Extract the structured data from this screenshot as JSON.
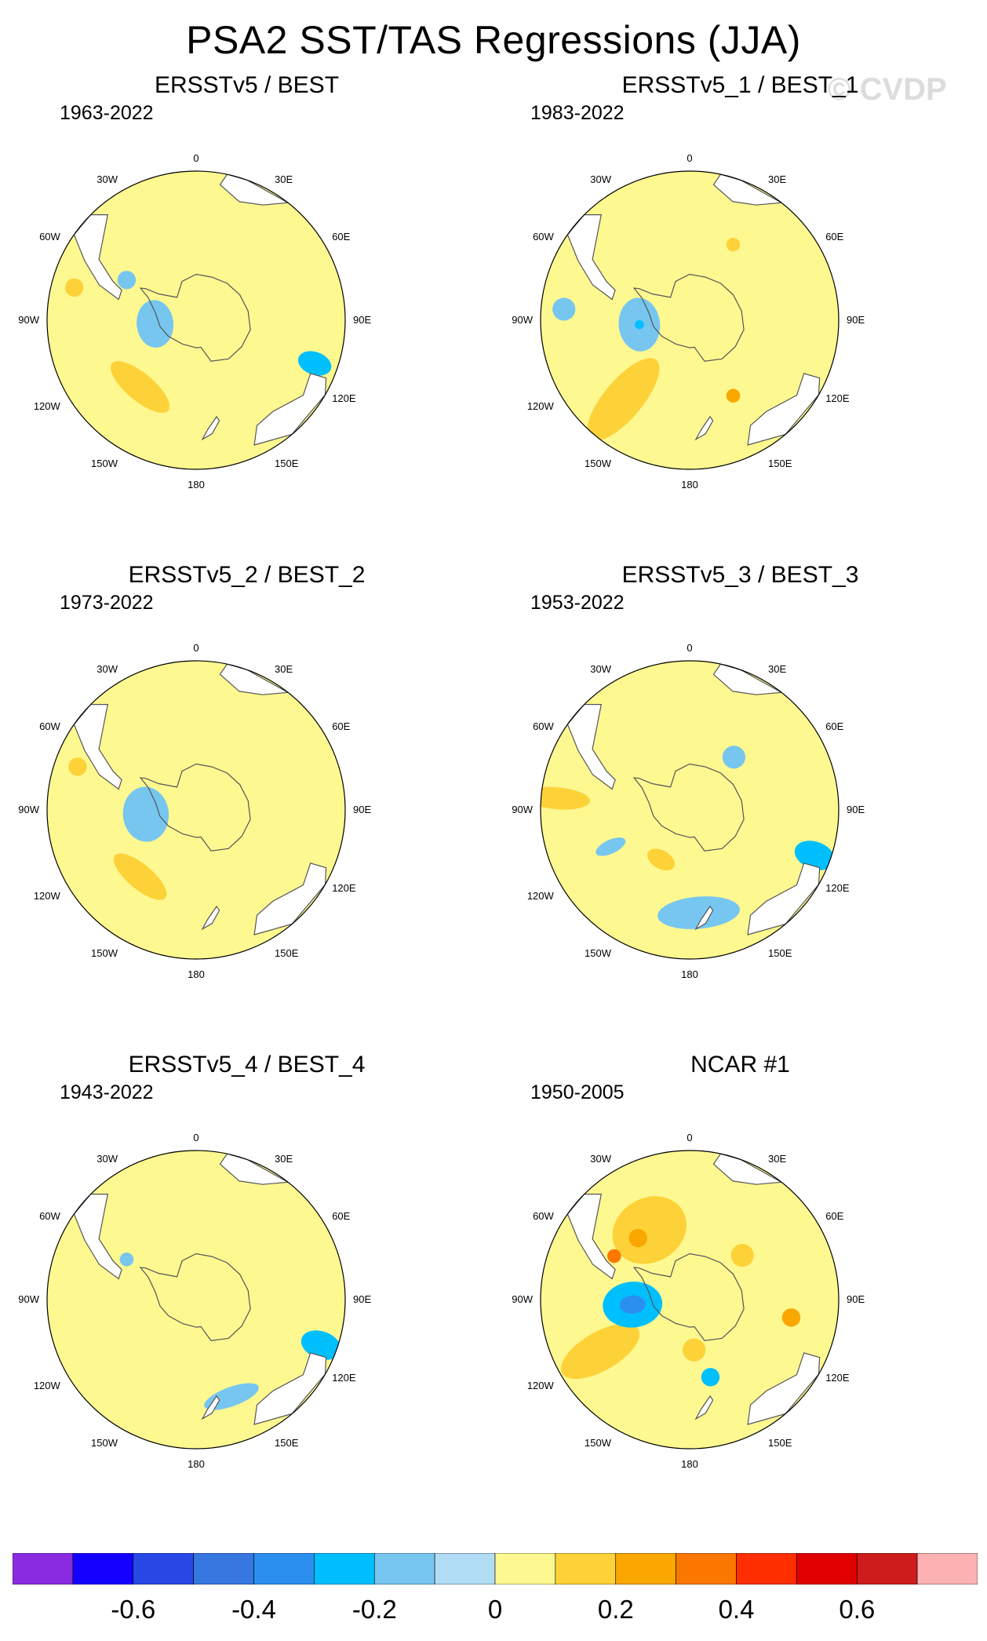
{
  "title": "PSA2 SST/TAS Regressions (JJA)",
  "watermark": "© CVDP",
  "chart_data": [
    {
      "type": "heatmap",
      "projection": "south-polar-stereographic",
      "title": "ERSSTv5 / BEST",
      "period": "1963-2022",
      "longitude_labels": [
        "0",
        "30E",
        "60E",
        "90E",
        "120E",
        "150E",
        "180",
        "150W",
        "120W",
        "90W",
        "60W",
        "30W"
      ],
      "features": [
        {
          "lon": -140,
          "colat": 38,
          "value": 0.15,
          "r": 10,
          "sx": 1.6,
          "sy": 0.6
        },
        {
          "lon": -150,
          "colat": 30,
          "value": 0.05,
          "r": 20,
          "sx": 1.5,
          "sy": 1.0
        },
        {
          "lon": -95,
          "colat": 18,
          "value": -0.15,
          "r": 8,
          "sx": 1.3,
          "sy": 1.0
        },
        {
          "lon": -90,
          "colat": 48,
          "value": 0.05,
          "r": 22,
          "sx": 1.2,
          "sy": 1.0
        },
        {
          "lon": -30,
          "colat": 40,
          "value": 0.05,
          "r": 22,
          "sx": 1.0,
          "sy": 0.8
        },
        {
          "lon": -60,
          "colat": 35,
          "value": -0.15,
          "r": 4,
          "sx": 1.0,
          "sy": 1.0
        },
        {
          "lon": -75,
          "colat": 55,
          "value": 0.15,
          "r": 4,
          "sx": 1.0,
          "sy": 1.0
        },
        {
          "lon": 45,
          "colat": 38,
          "value": 0.05,
          "r": 22,
          "sx": 1.0,
          "sy": 1.3
        },
        {
          "lon": 70,
          "colat": 15,
          "value": 0.05,
          "r": 12,
          "sx": 1.3,
          "sy": 0.8
        },
        {
          "lon": 110,
          "colat": 55,
          "value": -0.25,
          "r": 5,
          "sx": 1.0,
          "sy": 1.5
        }
      ]
    },
    {
      "type": "heatmap",
      "projection": "south-polar-stereographic",
      "title": "ERSSTv5_1 / BEST_1",
      "period": "1983-2022",
      "longitude_labels": [
        "0",
        "30E",
        "60E",
        "90E",
        "120E",
        "150E",
        "180",
        "150W",
        "120W",
        "90W",
        "60W",
        "30W"
      ],
      "features": [
        {
          "lon": -140,
          "colat": 45,
          "value": 0.15,
          "r": 14,
          "sx": 0.6,
          "sy": 1.6
        },
        {
          "lon": -160,
          "colat": 35,
          "value": 0.05,
          "r": 24,
          "sx": 1.6,
          "sy": 0.8
        },
        {
          "lon": -95,
          "colat": 22,
          "value": -0.15,
          "r": 9,
          "sx": 1.3,
          "sy": 1.0
        },
        {
          "lon": -95,
          "colat": 22,
          "value": -0.25,
          "r": 2,
          "sx": 1.0,
          "sy": 1.0
        },
        {
          "lon": -120,
          "colat": 30,
          "value": 0.05,
          "r": 12,
          "sx": 1.8,
          "sy": 0.7
        },
        {
          "lon": -85,
          "colat": 55,
          "value": -0.15,
          "r": 5,
          "sx": 1.0,
          "sy": 1.0
        },
        {
          "lon": 10,
          "colat": 40,
          "value": 0.05,
          "r": 14,
          "sx": 1.0,
          "sy": 1.0
        },
        {
          "lon": 30,
          "colat": 38,
          "value": 0.15,
          "r": 3,
          "sx": 1.0,
          "sy": 1.0
        },
        {
          "lon": 90,
          "colat": 30,
          "value": 0.05,
          "r": 20,
          "sx": 1.0,
          "sy": 1.2
        },
        {
          "lon": 150,
          "colat": 38,
          "value": 0.25,
          "r": 3,
          "sx": 1.0,
          "sy": 1.0
        }
      ]
    },
    {
      "type": "heatmap",
      "projection": "south-polar-stereographic",
      "title": "ERSSTv5_2 / BEST_2",
      "period": "1973-2022",
      "longitude_labels": [
        "0",
        "30E",
        "60E",
        "90E",
        "120E",
        "150E",
        "180",
        "150W",
        "120W",
        "90W",
        "60W",
        "30W"
      ],
      "features": [
        {
          "lon": -140,
          "colat": 38,
          "value": 0.15,
          "r": 9,
          "sx": 1.6,
          "sy": 0.6
        },
        {
          "lon": -150,
          "colat": 30,
          "value": 0.05,
          "r": 20,
          "sx": 1.5,
          "sy": 1.0
        },
        {
          "lon": -95,
          "colat": 22,
          "value": -0.15,
          "r": 10,
          "sx": 1.2,
          "sy": 1.0
        },
        {
          "lon": -40,
          "colat": 40,
          "value": 0.05,
          "r": 22,
          "sx": 1.0,
          "sy": 0.9
        },
        {
          "lon": -70,
          "colat": 55,
          "value": 0.15,
          "r": 4,
          "sx": 1.0,
          "sy": 1.0
        },
        {
          "lon": 40,
          "colat": 30,
          "value": 0.05,
          "r": 24,
          "sx": 1.0,
          "sy": 1.3
        },
        {
          "lon": 80,
          "colat": 45,
          "value": 0.05,
          "r": 15,
          "sx": 1.0,
          "sy": 1.0
        }
      ]
    },
    {
      "type": "heatmap",
      "projection": "south-polar-stereographic",
      "title": "ERSSTv5_3 / BEST_3",
      "period": "1953-2022",
      "longitude_labels": [
        "0",
        "30E",
        "60E",
        "90E",
        "120E",
        "150E",
        "180",
        "150W",
        "120W",
        "90W",
        "60W",
        "30W"
      ],
      "features": [
        {
          "lon": -160,
          "colat": 30,
          "value": 0.05,
          "r": 18,
          "sx": 1.4,
          "sy": 0.8
        },
        {
          "lon": -150,
          "colat": 25,
          "value": 0.15,
          "r": 5,
          "sx": 1.3,
          "sy": 0.8
        },
        {
          "lon": 175,
          "colat": 45,
          "value": -0.15,
          "r": 10,
          "sx": 1.8,
          "sy": 0.7
        },
        {
          "lon": -115,
          "colat": 38,
          "value": -0.15,
          "r": 5,
          "sx": 0.6,
          "sy": 1.4
        },
        {
          "lon": -85,
          "colat": 58,
          "value": 0.15,
          "r": 8,
          "sx": 0.6,
          "sy": 1.8
        },
        {
          "lon": -85,
          "colat": 50,
          "value": 0.05,
          "r": 12,
          "sx": 0.8,
          "sy": 1.6
        },
        {
          "lon": 40,
          "colat": 30,
          "value": -0.15,
          "r": 5,
          "sx": 1.0,
          "sy": 1.0
        },
        {
          "lon": 70,
          "colat": 40,
          "value": 0.05,
          "r": 22,
          "sx": 1.2,
          "sy": 1.0
        },
        {
          "lon": 110,
          "colat": 58,
          "value": -0.25,
          "r": 6,
          "sx": 1.0,
          "sy": 1.5
        }
      ]
    },
    {
      "type": "heatmap",
      "projection": "south-polar-stereographic",
      "title": "ERSSTv5_4 / BEST_4",
      "period": "1943-2022",
      "longitude_labels": [
        "0",
        "30E",
        "60E",
        "90E",
        "120E",
        "150E",
        "180",
        "150W",
        "120W",
        "90W",
        "60W",
        "30W"
      ],
      "features": [
        {
          "lon": -150,
          "colat": 28,
          "value": 0.05,
          "r": 18,
          "sx": 1.6,
          "sy": 0.8
        },
        {
          "lon": -90,
          "colat": 50,
          "value": 0.05,
          "r": 20,
          "sx": 0.9,
          "sy": 1.3
        },
        {
          "lon": -10,
          "colat": 30,
          "value": 0.05,
          "r": 12,
          "sx": 0.8,
          "sy": 1.3
        },
        {
          "lon": -60,
          "colat": 35,
          "value": -0.15,
          "r": 3,
          "sx": 1.0,
          "sy": 1.0
        },
        {
          "lon": 160,
          "colat": 45,
          "value": -0.15,
          "r": 7,
          "sx": 1.8,
          "sy": 0.6
        },
        {
          "lon": 110,
          "colat": 58,
          "value": -0.25,
          "r": 6,
          "sx": 1.0,
          "sy": 1.5
        }
      ]
    },
    {
      "type": "heatmap",
      "projection": "south-polar-stereographic",
      "title": "NCAR #1",
      "period": "1950-2005",
      "longitude_labels": [
        "0",
        "30E",
        "60E",
        "90E",
        "120E",
        "150E",
        "180",
        "150W",
        "120W",
        "90W",
        "60W",
        "30W"
      ],
      "features": [
        {
          "lon": -110,
          "colat": 45,
          "value": 0.05,
          "r": 22,
          "sx": 0.8,
          "sy": 1.5
        },
        {
          "lon": -120,
          "colat": 45,
          "value": 0.15,
          "r": 12,
          "sx": 0.7,
          "sy": 1.6
        },
        {
          "lon": -95,
          "colat": 25,
          "value": -0.25,
          "r": 10,
          "sx": 1.0,
          "sy": 1.3
        },
        {
          "lon": -95,
          "colat": 25,
          "value": -0.35,
          "r": 4,
          "sx": 1.0,
          "sy": 1.4
        },
        {
          "lon": -30,
          "colat": 35,
          "value": 0.15,
          "r": 14,
          "sx": 1.2,
          "sy": 1.0
        },
        {
          "lon": -40,
          "colat": 35,
          "value": 0.25,
          "r": 4,
          "sx": 1.0,
          "sy": 1.0
        },
        {
          "lon": -60,
          "colat": 38,
          "value": 0.35,
          "r": 3,
          "sx": 1.0,
          "sy": 1.0
        },
        {
          "lon": 50,
          "colat": 30,
          "value": 0.15,
          "r": 5,
          "sx": 1.0,
          "sy": 1.0
        },
        {
          "lon": 100,
          "colat": 45,
          "value": 0.25,
          "r": 4,
          "sx": 1.0,
          "sy": 1.0
        },
        {
          "lon": 165,
          "colat": 35,
          "value": -0.25,
          "r": 4,
          "sx": 1.0,
          "sy": 1.0
        },
        {
          "lon": 175,
          "colat": 22,
          "value": 0.15,
          "r": 5,
          "sx": 1.0,
          "sy": 1.0
        }
      ]
    }
  ],
  "colorbar": {
    "levels": [
      -0.7,
      -0.6,
      -0.5,
      -0.4,
      -0.3,
      -0.2,
      -0.1,
      0,
      0.1,
      0.2,
      0.3,
      0.4,
      0.5,
      0.6,
      0.7
    ],
    "colors": [
      "#8A2BE2",
      "#1400FF",
      "#2848E6",
      "#3677E0",
      "#2B8FEF",
      "#00BFFF",
      "#77C6F0",
      "#B1DDF4",
      "#FEF891",
      "#FDD238",
      "#FAA700",
      "#FC7700",
      "#FF2E00",
      "#E10000",
      "#CE1B1B",
      "#FCB2B2"
    ],
    "tick_labels": [
      "-0.6",
      "-0.4",
      "-0.2",
      "0",
      "0.2",
      "0.4",
      "0.6"
    ]
  },
  "map_colors": {
    "land": "#ffffff",
    "coast": "#555555",
    "frame": "#000000"
  }
}
